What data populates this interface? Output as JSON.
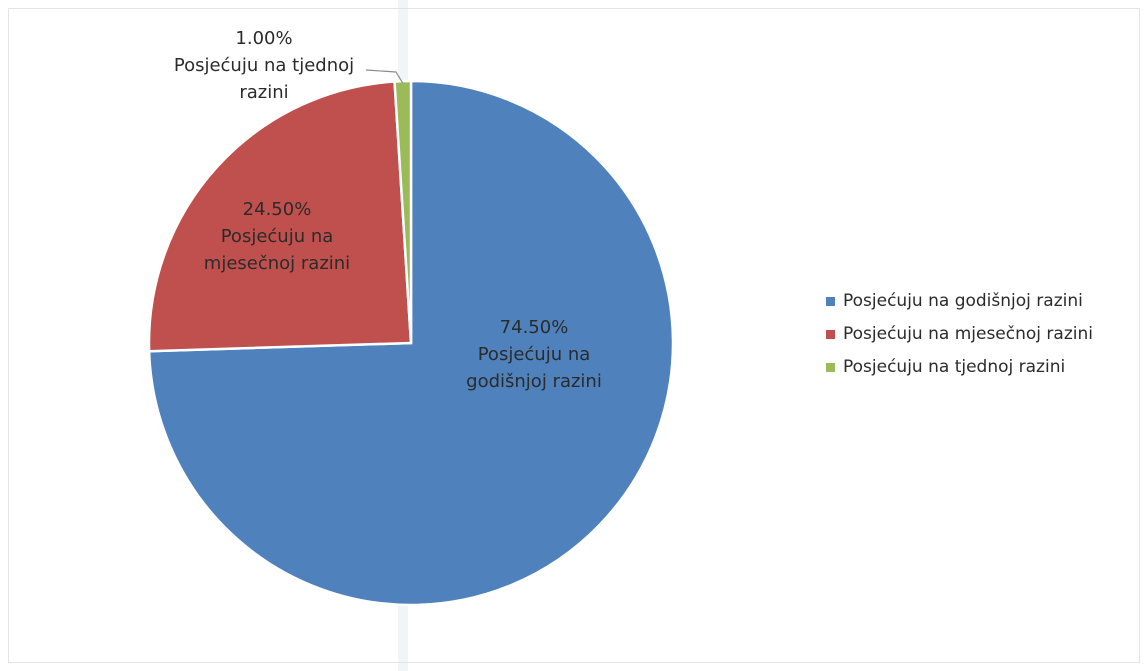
{
  "chart_data": {
    "type": "pie",
    "slices": [
      {
        "label": "Posjećuju na godišnjoj razini",
        "value": 74.5,
        "percent_text": "74.50%",
        "label_lines": [
          "Posjećuju na",
          "godišnjoj razini"
        ],
        "color": "#4f81bd"
      },
      {
        "label": "Posjećuju na mjesečnoj razini",
        "value": 24.5,
        "percent_text": "24.50%",
        "label_lines": [
          "Posjećuju na",
          "mjesečnoj razini"
        ],
        "color": "#c0504d"
      },
      {
        "label": "Posjećuju na tjednoj razini",
        "value": 1.0,
        "percent_text": "1.00%",
        "label_lines": [
          "Posjećuju na tjednoj",
          "razini"
        ],
        "color": "#9bbb59"
      }
    ],
    "legend_position": "right",
    "title": ""
  },
  "legend": {
    "items": [
      {
        "label": "Posjećuju na godišnjoj razini",
        "color": "#4f81bd"
      },
      {
        "label": "Posjećuju na mjesečnoj razini",
        "color": "#c0504d"
      },
      {
        "label": "Posjećuju na tjednoj razini",
        "color": "#9bbb59"
      }
    ]
  }
}
